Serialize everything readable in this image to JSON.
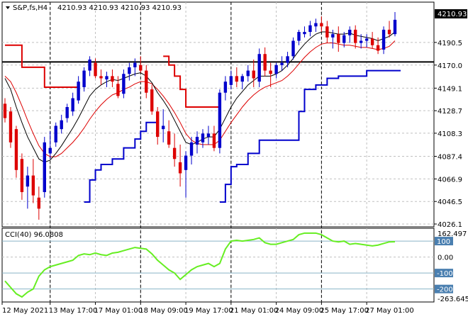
{
  "header": {
    "symbol": "S&P,fs,H4",
    "ohlc": "4210.93 4210.93 4210.93 4210.93",
    "current_price": "4210.93"
  },
  "indicator": {
    "label": "CCI(40) 96.0808",
    "max_label": "162.497",
    "min_label": "-263.6451",
    "level_labels": [
      "100",
      "0.00",
      "-100",
      "-200"
    ]
  },
  "chart_data": {
    "type": "candlestick",
    "ylim": [
      4026.1,
      4218.0
    ],
    "yticks": [
      4190.5,
      4170.0,
      4149.1,
      4128.7,
      4108.3,
      4087.4,
      4066.9,
      4046.5,
      4026.1
    ],
    "xticks": [
      "12 May 2021",
      "13 May 17:00",
      "17 May 01:00",
      "18 May 09:00",
      "19 May 17:00",
      "21 May 01:00",
      "24 May 09:00",
      "25 May 17:00",
      "27 May 01:00"
    ],
    "horizontal_line": 4172.8,
    "session_dividers": [
      "13 May 17:00",
      "18 May 09:00",
      "21 May 01:00",
      "25 May 17:00"
    ],
    "colors": {
      "bull": "#0000cc",
      "bear": "#dd0000",
      "fast_ma": "#000000",
      "slow_ma": "#dd0000",
      "cci": "#66ee22",
      "line": "#000000"
    },
    "candles": [
      [
        4135,
        4140,
        4118,
        4122
      ],
      [
        4128,
        4132,
        4095,
        4100
      ],
      [
        4112,
        4115,
        4068,
        4075
      ],
      [
        4085,
        4090,
        4048,
        4055
      ],
      [
        4060,
        4078,
        4040,
        4070
      ],
      [
        4070,
        4085,
        4045,
        4052
      ],
      [
        4050,
        4060,
        4030,
        4040
      ],
      [
        4055,
        4105,
        4050,
        4100
      ],
      [
        4090,
        4110,
        4085,
        4095
      ],
      [
        4100,
        4118,
        4096,
        4115
      ],
      [
        4112,
        4125,
        4108,
        4120
      ],
      [
        4122,
        4135,
        4118,
        4132
      ],
      [
        4128,
        4145,
        4124,
        4140
      ],
      [
        4138,
        4160,
        4135,
        4155
      ],
      [
        4150,
        4168,
        4146,
        4165
      ],
      [
        4165,
        4178,
        4160,
        4175
      ],
      [
        4172,
        4176,
        4158,
        4160
      ],
      [
        4160,
        4166,
        4152,
        4158
      ],
      [
        4157,
        4164,
        4150,
        4160
      ],
      [
        4160,
        4166,
        4150,
        4155
      ],
      [
        4153,
        4160,
        4140,
        4142
      ],
      [
        4144,
        4166,
        4140,
        4162
      ],
      [
        4162,
        4172,
        4156,
        4168
      ],
      [
        4168,
        4176,
        4160,
        4172
      ],
      [
        4170,
        4178,
        4163,
        4165
      ],
      [
        4165,
        4170,
        4140,
        4145
      ],
      [
        4148,
        4152,
        4125,
        4128
      ],
      [
        4128,
        4132,
        4098,
        4105
      ],
      [
        4112,
        4130,
        4100,
        4115
      ],
      [
        4110,
        4120,
        4095,
        4098
      ],
      [
        4095,
        4108,
        4078,
        4085
      ],
      [
        4082,
        4098,
        4060,
        4072
      ],
      [
        4075,
        4092,
        4050,
        4088
      ],
      [
        4088,
        4105,
        4080,
        4100
      ],
      [
        4098,
        4110,
        4090,
        4105
      ],
      [
        4100,
        4112,
        4095,
        4108
      ],
      [
        4105,
        4115,
        4098,
        4108
      ],
      [
        4108,
        4115,
        4092,
        4095
      ],
      [
        4095,
        4148,
        4090,
        4145
      ],
      [
        4145,
        4160,
        4138,
        4155
      ],
      [
        4152,
        4165,
        4148,
        4160
      ],
      [
        4160,
        4168,
        4150,
        4155
      ],
      [
        4155,
        4162,
        4148,
        4160
      ],
      [
        4160,
        4170,
        4155,
        4165
      ],
      [
        4165,
        4175,
        4150,
        4158
      ],
      [
        4155,
        4185,
        4150,
        4180
      ],
      [
        4180,
        4186,
        4160,
        4165
      ],
      [
        4165,
        4172,
        4150,
        4162
      ],
      [
        4162,
        4172,
        4158,
        4170
      ],
      [
        4170,
        4178,
        4165,
        4172
      ],
      [
        4172,
        4182,
        4168,
        4178
      ],
      [
        4178,
        4195,
        4175,
        4192
      ],
      [
        4192,
        4202,
        4188,
        4200
      ],
      [
        4198,
        4205,
        4195,
        4200
      ],
      [
        4200,
        4210,
        4196,
        4206
      ],
      [
        4205,
        4212,
        4200,
        4208
      ],
      [
        4208,
        4214,
        4200,
        4205
      ],
      [
        4205,
        4210,
        4190,
        4195
      ],
      [
        4195,
        4202,
        4185,
        4198
      ],
      [
        4198,
        4205,
        4182,
        4190
      ],
      [
        4190,
        4200,
        4186,
        4197
      ],
      [
        4197,
        4205,
        4190,
        4202
      ],
      [
        4202,
        4206,
        4185,
        4190
      ],
      [
        4190,
        4198,
        4185,
        4192
      ],
      [
        4192,
        4198,
        4186,
        4194
      ],
      [
        4194,
        4200,
        4185,
        4188
      ],
      [
        4188,
        4195,
        4180,
        4183
      ],
      [
        4184,
        4205,
        4180,
        4202
      ],
      [
        4202,
        4210,
        4195,
        4198
      ],
      [
        4198,
        4218,
        4196,
        4211
      ]
    ],
    "fast_ma": [
      4158,
      4148,
      4132,
      4118,
      4105,
      4095,
      4085,
      4082,
      4084,
      4090,
      4097,
      4105,
      4113,
      4122,
      4132,
      4142,
      4148,
      4152,
      4155,
      4157,
      4156,
      4158,
      4160,
      4162,
      4163,
      4160,
      4154,
      4145,
      4138,
      4130,
      4120,
      4110,
      4100,
      4098,
      4100,
      4103,
      4105,
      4105,
      4112,
      4122,
      4132,
      4140,
      4146,
      4152,
      4156,
      4160,
      4160,
      4160,
      4162,
      4165,
      4170,
      4176,
      4183,
      4189,
      4194,
      4198,
      4200,
      4200,
      4199,
      4198,
      4198,
      4199,
      4197,
      4196,
      4195,
      4194,
      4192,
      4194,
      4196,
      4200
    ],
    "slow_ma": [
      4160,
      4155,
      4145,
      4133,
      4120,
      4108,
      4097,
      4090,
      4087,
      4087,
      4090,
      4095,
      4100,
      4106,
      4113,
      4121,
      4128,
      4134,
      4139,
      4143,
      4145,
      4148,
      4150,
      4153,
      4155,
      4155,
      4153,
      4148,
      4142,
      4135,
      4127,
      4118,
      4108,
      4102,
      4099,
      4098,
      4098,
      4098,
      4102,
      4110,
      4118,
      4125,
      4132,
      4138,
      4143,
      4147,
      4150,
      4152,
      4154,
      4156,
      4160,
      4165,
      4171,
      4177,
      4182,
      4186,
      4189,
      4190,
      4190,
      4189,
      4188,
      4188,
      4187,
      4186,
      4186,
      4185,
      4184,
      4185,
      4187,
      4192
    ],
    "trail_segments": [
      {
        "color": "#dd0000",
        "values": [
          4188,
          4188,
          4188,
          4168,
          4168,
          4168,
          4168,
          4150,
          4150,
          4150,
          4150,
          4150,
          4150,
          4150
        ]
      },
      {
        "color": "#0000cc",
        "start": 14,
        "values": [
          4046,
          4066,
          4075,
          4080,
          4080,
          4085,
          4085,
          4095,
          4095,
          4103,
          4110,
          4118,
          4118,
          4118
        ]
      },
      {
        "color": "#dd0000",
        "start": 28,
        "values": [
          4178,
          4170,
          4160,
          4148,
          4132,
          4132,
          4132,
          4132,
          4132,
          4132,
          4132
        ]
      },
      {
        "color": "#0000cc",
        "start": 38,
        "values": [
          4046,
          4062,
          4078,
          4080,
          4080,
          4090,
          4090,
          4102,
          4102,
          4102,
          4102,
          4102,
          4102,
          4102,
          4128,
          4148,
          4148,
          4152,
          4152,
          4158,
          4158,
          4160,
          4160,
          4160,
          4160,
          4160,
          4165,
          4165,
          4165,
          4165,
          4165,
          4165,
          4165
        ]
      }
    ],
    "cci": {
      "ylim": [
        -263.6451,
        162.497
      ],
      "levels": [
        100,
        0,
        -100,
        -200
      ],
      "values": [
        -150,
        -190,
        -230,
        -250,
        -220,
        -200,
        -120,
        -80,
        -60,
        -50,
        -40,
        -30,
        -20,
        10,
        20,
        15,
        25,
        15,
        10,
        25,
        30,
        40,
        50,
        60,
        55,
        50,
        20,
        -20,
        -50,
        -80,
        -100,
        -140,
        -110,
        -80,
        -60,
        -50,
        -40,
        -60,
        -40,
        50,
        100,
        105,
        100,
        105,
        110,
        120,
        90,
        80,
        80,
        90,
        100,
        110,
        140,
        150,
        150,
        150,
        140,
        120,
        100,
        95,
        100,
        80,
        85,
        80,
        75,
        70,
        75,
        85,
        95,
        96
      ]
    }
  }
}
